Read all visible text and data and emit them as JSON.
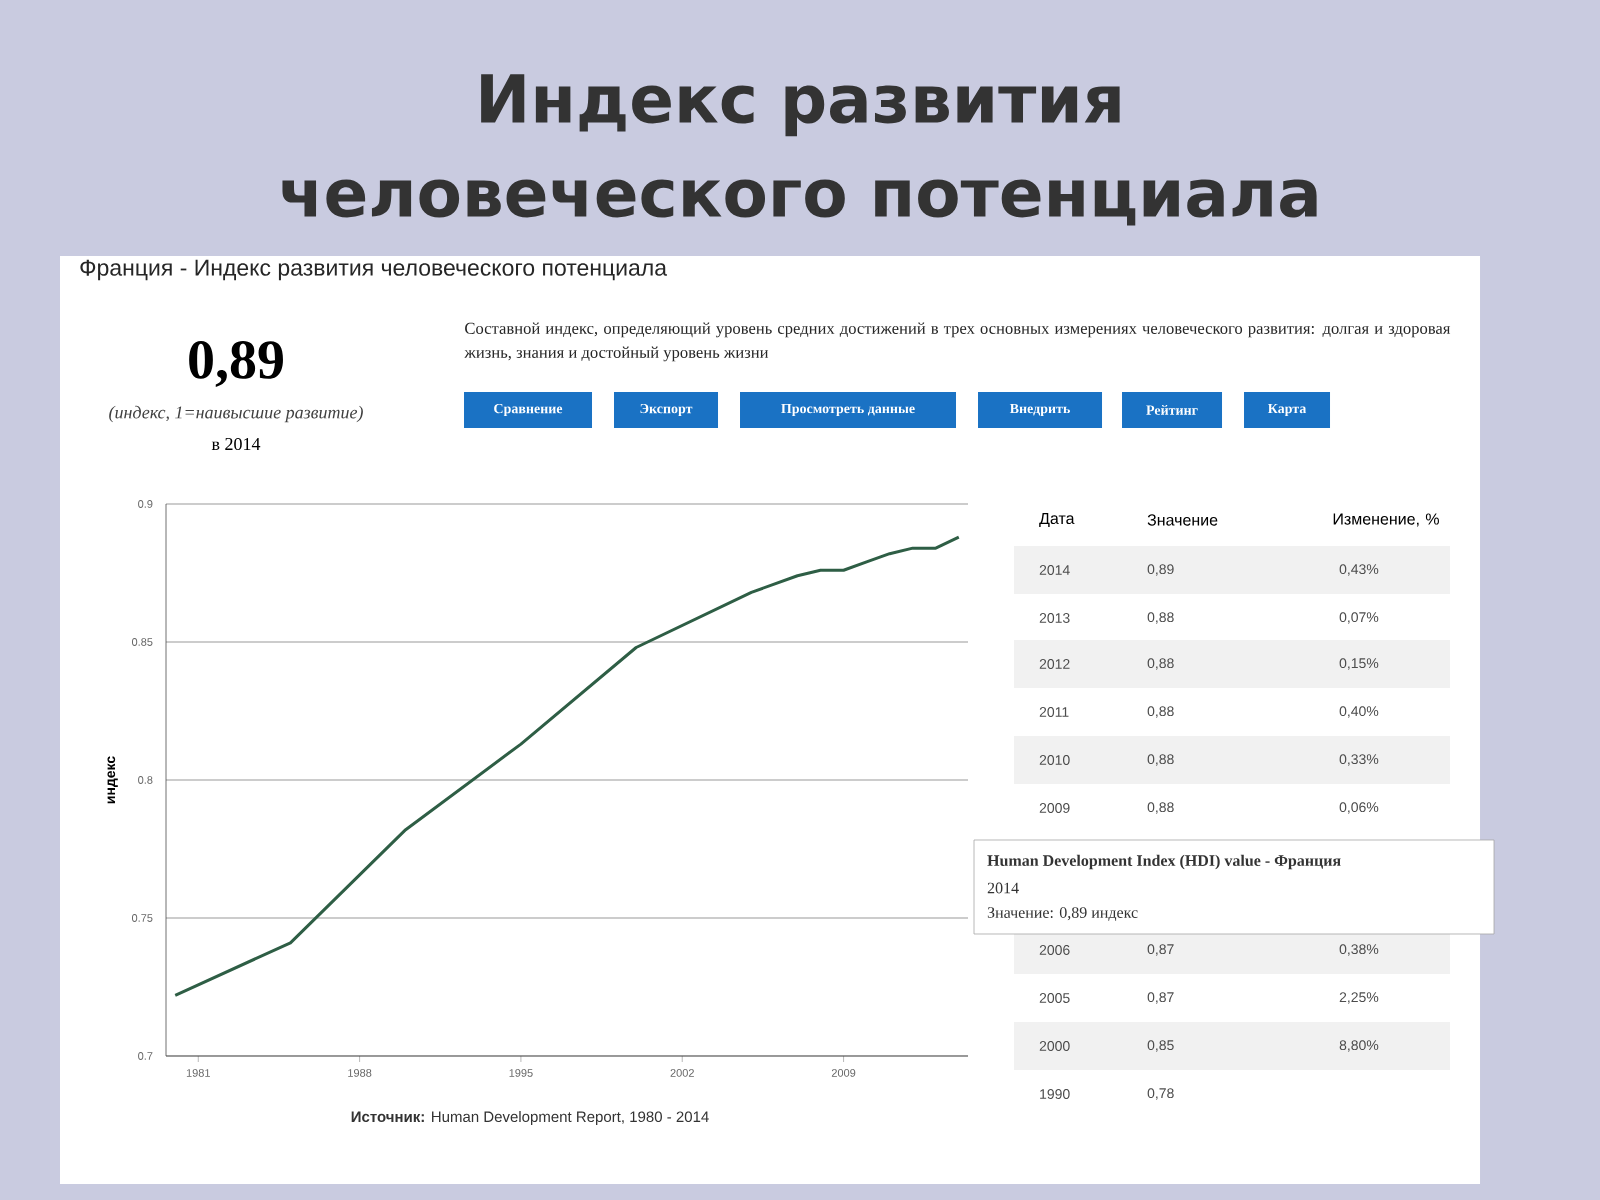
{
  "chart_data": {
    "type": "line",
    "title": "Индекс развития человеческого потенциала",
    "subtitle": "Франция - Индекс развития человеческого потенциала",
    "ylabel": "индекс",
    "x": [
      1980,
      1985,
      1990,
      1995,
      2000,
      2005,
      2006,
      2007,
      2008,
      2009,
      2010,
      2011,
      2012,
      2013,
      2014
    ],
    "values": [
      0.722,
      0.741,
      0.782,
      0.813,
      0.848,
      0.868,
      0.871,
      0.874,
      0.876,
      0.876,
      0.879,
      0.882,
      0.884,
      0.884,
      0.888
    ],
    "color": "#2e5e45",
    "xlim": [
      1979.6,
      2014.4
    ],
    "ylim": [
      0.7,
      0.9
    ],
    "xticks": [
      1981,
      1988,
      1995,
      2002,
      2009
    ],
    "yticks": [
      0.7,
      0.75,
      0.8,
      0.85,
      0.9
    ],
    "grid": "y",
    "annotations": [
      "0,89",
      "*(индекс, 1=наивысшие развитие)*",
      "в 2014",
      "Составной индекс, определяющий уровень средних достижений в трех основных измерениях человеческого развития: долгая и здоровая жизнь, знания и достойный уровень жизни",
      "Сравнение",
      "Экспорт",
      "Просмотреть данные",
      "Внедрить",
      "Рейтинг",
      "Карта",
      "Дата",
      "Значение",
      "Изменение, %",
      "2014",
      "0,89",
      "0,43%",
      "2013",
      "0,88",
      "0,07%",
      "2012",
      "0,88",
      "0,15%",
      "2011",
      "0,88",
      "0,40%",
      "2010",
      "0,88",
      "0,33%",
      "2009",
      "0,88",
      "0,06%",
      "2006",
      "0,87",
      "0,38%",
      "2005",
      "0,87",
      "2,25%",
      "2000",
      "0,85",
      "8,80%",
      "1990",
      "0,78",
      "**Источник:** Human Development Report, 1980 - 2014",
      "**Human Development Index (HDI) value - Франция**",
      "2014",
      "Значение: 0,89 индекс"
    ]
  }
}
